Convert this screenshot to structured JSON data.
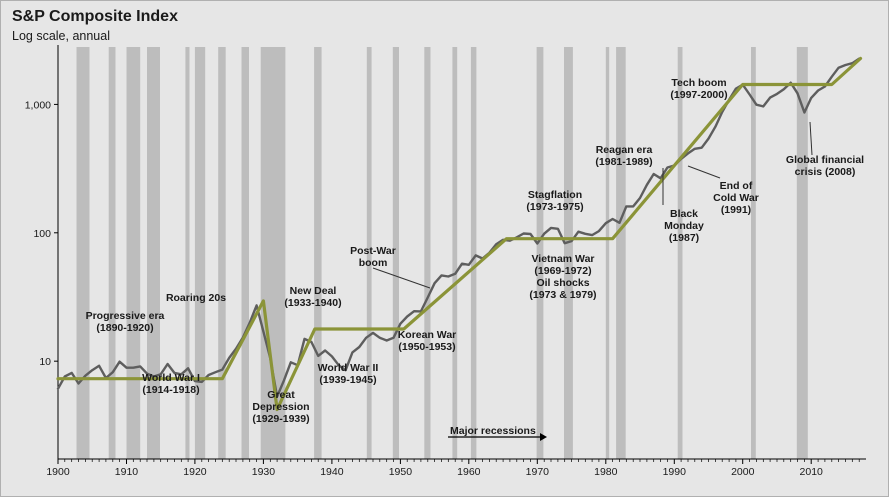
{
  "chart_data": {
    "type": "line",
    "title": "S&P Composite Index",
    "subtitle": "Log scale, annual",
    "xlabel": "",
    "ylabel": "",
    "yscale": "log",
    "xlim": [
      1900,
      2018
    ],
    "ylim": [
      1.73,
      2800
    ],
    "x_ticks": [
      1900,
      1910,
      1920,
      1930,
      1940,
      1950,
      1960,
      1970,
      1980,
      1990,
      2000,
      2010
    ],
    "y_ticks": [
      {
        "value": 10,
        "label": "10"
      },
      {
        "value": 100,
        "label": "100"
      },
      {
        "value": 1000,
        "label": "1,000"
      }
    ],
    "recessions": [
      [
        1902.7,
        1904.6
      ],
      [
        1907.4,
        1908.4
      ],
      [
        1910.0,
        1912.0
      ],
      [
        1913.0,
        1914.9
      ],
      [
        1918.6,
        1919.2
      ],
      [
        1920.0,
        1921.5
      ],
      [
        1923.4,
        1924.5
      ],
      [
        1926.8,
        1927.9
      ],
      [
        1929.6,
        1933.2
      ],
      [
        1937.4,
        1938.5
      ],
      [
        1945.1,
        1945.8
      ],
      [
        1948.9,
        1949.8
      ],
      [
        1953.5,
        1954.4
      ],
      [
        1957.6,
        1958.3
      ],
      [
        1960.3,
        1961.1
      ],
      [
        1969.9,
        1970.9
      ],
      [
        1973.9,
        1975.2
      ],
      [
        1980.0,
        1980.5
      ],
      [
        1981.5,
        1982.9
      ],
      [
        1990.5,
        1991.2
      ],
      [
        2001.2,
        2001.9
      ],
      [
        2007.9,
        2009.5
      ]
    ],
    "series": [
      {
        "name": "S&P Composite Index",
        "color": "#5e5e5e",
        "x": [
          1900,
          1901,
          1902,
          1903,
          1904,
          1905,
          1906,
          1907,
          1908,
          1909,
          1910,
          1911,
          1912,
          1913,
          1914,
          1915,
          1916,
          1917,
          1918,
          1919,
          1920,
          1921,
          1922,
          1923,
          1924,
          1925,
          1926,
          1927,
          1928,
          1929,
          1930,
          1931,
          1932,
          1933,
          1934,
          1935,
          1936,
          1937,
          1938,
          1939,
          1940,
          1941,
          1942,
          1943,
          1944,
          1945,
          1946,
          1947,
          1948,
          1949,
          1950,
          1951,
          1952,
          1953,
          1954,
          1955,
          1956,
          1957,
          1958,
          1959,
          1960,
          1961,
          1962,
          1963,
          1964,
          1965,
          1966,
          1967,
          1968,
          1969,
          1970,
          1971,
          1972,
          1973,
          1974,
          1975,
          1976,
          1977,
          1978,
          1979,
          1980,
          1981,
          1982,
          1983,
          1984,
          1985,
          1986,
          1987,
          1988,
          1989,
          1990,
          1991,
          1992,
          1993,
          1994,
          1995,
          1996,
          1997,
          1998,
          1999,
          2000,
          2001,
          2002,
          2003,
          2004,
          2005,
          2006,
          2007,
          2008,
          2009,
          2010,
          2011,
          2012,
          2013,
          2014,
          2015,
          2016,
          2017
        ],
        "values": [
          6.1,
          7.6,
          8.1,
          6.7,
          7.7,
          8.5,
          9.2,
          7.4,
          8.2,
          9.9,
          8.9,
          8.9,
          9.1,
          8.0,
          7.6,
          7.9,
          9.5,
          8.1,
          7.9,
          8.8,
          7.0,
          6.9,
          7.8,
          8.2,
          8.6,
          10.6,
          12.5,
          15.3,
          19.9,
          27.2,
          17.0,
          10.5,
          5.3,
          7.1,
          9.8,
          9.3,
          14.9,
          14.1,
          11.0,
          12.1,
          10.9,
          9.3,
          8.5,
          11.7,
          12.9,
          15.2,
          16.6,
          15.2,
          14.5,
          15.2,
          19.6,
          22.3,
          24.5,
          24.4,
          31.4,
          40.5,
          46.6,
          45.7,
          47.9,
          57.4,
          56.3,
          66.7,
          63.1,
          69.9,
          81.4,
          88.2,
          86.8,
          92.3,
          98.7,
          97.8,
          82.5,
          98.3,
          109.2,
          107.4,
          82.9,
          86.2,
          102.0,
          98.2,
          96.0,
          103.0,
          118.8,
          128.0,
          119.7,
          160.4,
          160.5,
          186.8,
          236.3,
          286.8,
          265.8,
          322.8,
          334.6,
          376.2,
          415.7,
          451.4,
          460.3,
          541.7,
          670.5,
          873.4,
          1085.5,
          1327.3,
          1427.2,
          1194.2,
          993.9,
          965.2,
          1130.6,
          1207.2,
          1310.5,
          1477.2,
          1220.0,
          865.6,
          1123.6,
          1282.6,
          1379.6,
          1643.8,
          1930.7,
          2028.2,
          2094.7,
          2275.1
        ]
      },
      {
        "name": "Trend",
        "color": "#8b9438",
        "x": [
          1900,
          1924,
          1930,
          1932,
          1937.5,
          1950.5,
          1965.5,
          1981,
          2000,
          2013,
          2017.2
        ],
        "values": [
          7.3,
          7.3,
          29.5,
          4.2,
          17.8,
          17.8,
          90,
          90,
          1430,
          1430,
          2280
        ]
      }
    ],
    "legend": {
      "label": "Major recessions",
      "position": "bottom-center"
    },
    "annotations": [
      {
        "lines": [
          "Progressive era",
          "(1890-1920)"
        ]
      },
      {
        "lines": [
          "World War I",
          "(1914-1918)"
        ]
      },
      {
        "lines": [
          "Roaring 20s"
        ]
      },
      {
        "lines": [
          "Great",
          "Depression",
          "(1929-1939)"
        ]
      },
      {
        "lines": [
          "New Deal",
          "(1933-1940)"
        ]
      },
      {
        "lines": [
          "World War II",
          "(1939-1945)"
        ]
      },
      {
        "lines": [
          "Post-War",
          "boom"
        ]
      },
      {
        "lines": [
          "Korean War",
          "(1950-1953)"
        ]
      },
      {
        "lines": [
          "Stagflation",
          "(1973-1975)"
        ]
      },
      {
        "lines": [
          "Vietnam War",
          "(1969-1972)",
          "Oil shocks",
          "(1973 & 1979)"
        ]
      },
      {
        "lines": [
          "Reagan era",
          "(1981-1989)"
        ]
      },
      {
        "lines": [
          "Black",
          "Monday",
          "(1987)"
        ]
      },
      {
        "lines": [
          "End of",
          "Cold War",
          "(1991)"
        ]
      },
      {
        "lines": [
          "Tech boom",
          "(1997-2000)"
        ]
      },
      {
        "lines": [
          "Global financial",
          "crisis (2008)"
        ]
      }
    ],
    "colors": {
      "background": "#e6e6e6",
      "recession": "#bdbdbd",
      "axis": "#000000",
      "text": "#1a1a1a"
    }
  }
}
